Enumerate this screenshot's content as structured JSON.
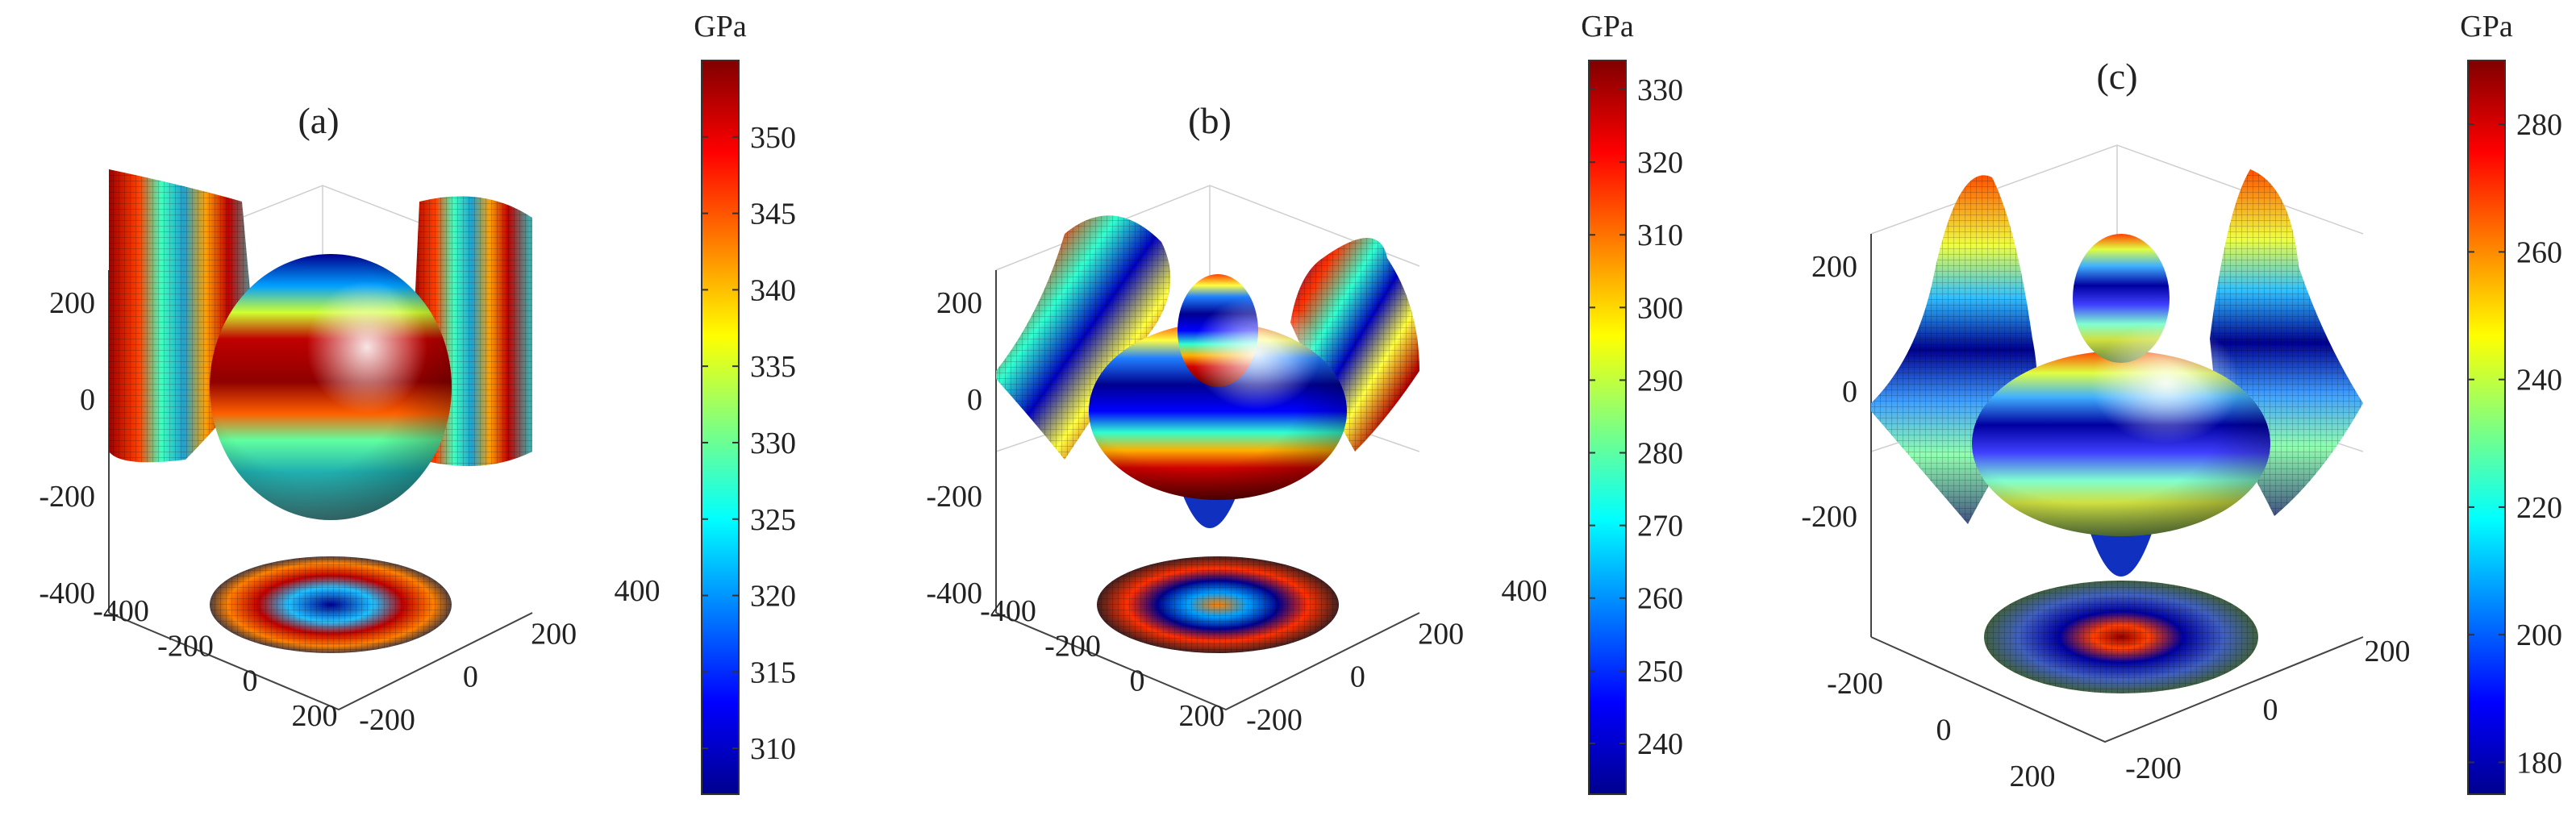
{
  "chart_data": [
    {
      "type": "3d-surface",
      "title": "(a)",
      "colorbar": {
        "unit": "GPa",
        "min": 307,
        "max": 355,
        "ticks": [
          310,
          315,
          320,
          325,
          330,
          335,
          340,
          345,
          350
        ]
      },
      "z_ticks": [
        200,
        0,
        -200,
        -400
      ],
      "x_ticks": [
        -400,
        -200,
        0,
        200
      ],
      "y_ticks": [
        -200,
        0,
        200,
        400
      ]
    },
    {
      "type": "3d-surface",
      "title": "(b)",
      "colorbar": {
        "unit": "GPa",
        "min": 233,
        "max": 334,
        "ticks": [
          240,
          250,
          260,
          270,
          280,
          290,
          300,
          310,
          320,
          330
        ]
      },
      "z_ticks": [
        200,
        0,
        -200,
        -400
      ],
      "x_ticks": [
        -400,
        -200,
        0,
        200
      ],
      "y_ticks": [
        -200,
        0,
        200,
        400
      ]
    },
    {
      "type": "3d-surface",
      "title": "(c)",
      "colorbar": {
        "unit": "GPa",
        "min": 175,
        "max": 290,
        "ticks": [
          180,
          200,
          220,
          240,
          260,
          280
        ]
      },
      "z_ticks": [
        200,
        0,
        -200
      ],
      "x_ticks": [
        -200,
        0,
        200
      ],
      "y_ticks": [
        -200,
        0,
        200
      ]
    }
  ]
}
